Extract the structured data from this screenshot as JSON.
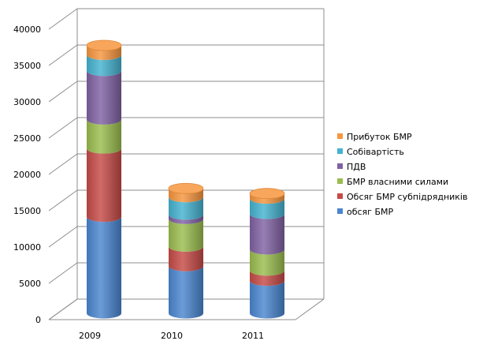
{
  "chart_data": {
    "type": "bar",
    "stacked": true,
    "style": "3d-cylinder",
    "categories": [
      "2009",
      "2010",
      "2011"
    ],
    "series": [
      {
        "name": "обсяг БМР",
        "color": "#4a86d0",
        "values": [
          13300,
          6500,
          4500
        ]
      },
      {
        "name": "Обсяг БМР субпідрядників",
        "color": "#c64b47",
        "values": [
          9400,
          2700,
          1400
        ]
      },
      {
        "name": "БМР власними  силами",
        "color": "#9abd4e",
        "values": [
          4000,
          3800,
          2900
        ]
      },
      {
        "name": "ПДВ",
        "color": "#8062a3",
        "values": [
          6700,
          600,
          4900
        ]
      },
      {
        "name": "Собівартість",
        "color": "#45b2d0",
        "values": [
          2200,
          2400,
          2100
        ]
      },
      {
        "name": "Прибуток БМР",
        "color": "#f7963e",
        "values": [
          1300,
          1200,
          700
        ]
      }
    ],
    "yticks": [
      "0",
      "5000",
      "10000",
      "15000",
      "20000",
      "25000",
      "30000",
      "35000",
      "40000"
    ],
    "ylim": [
      0,
      40000
    ],
    "grid": true,
    "legend_position": "right"
  }
}
